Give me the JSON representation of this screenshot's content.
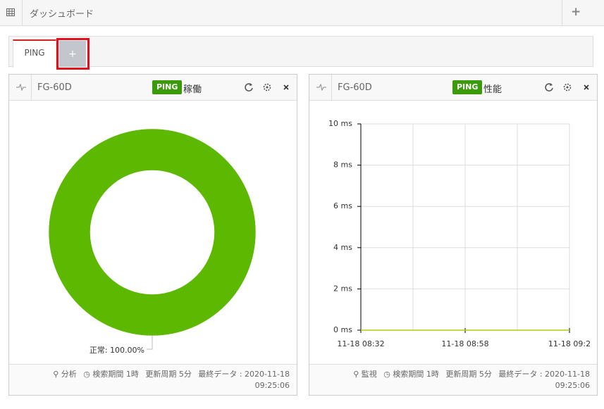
{
  "header": {
    "title": "ダッシュボード",
    "add": "+"
  },
  "tabs": [
    {
      "label": "PING"
    },
    {
      "label": "+"
    }
  ],
  "panels": [
    {
      "device": "FG-60D",
      "badge": "PING",
      "kind": "稼働",
      "footer": {
        "link": "分析",
        "period": "検索期間 1時",
        "interval": "更新周期 5分",
        "last": "最終データ : 2020-11-18",
        "last_time": "09:25:06"
      }
    },
    {
      "device": "FG-60D",
      "badge": "PING",
      "kind": "性能",
      "footer": {
        "link": "監視",
        "period": "検索期間 1時",
        "interval": "更新周期 5分",
        "last": "最終データ : 2020-11-18",
        "last_time": "09:25:06"
      }
    }
  ],
  "chart_data": [
    {
      "type": "pie",
      "categories": [
        "正常"
      ],
      "values": [
        100
      ],
      "value_labels": [
        "正常: 100.00%"
      ],
      "colors": [
        "#5cb800"
      ],
      "donut": true
    },
    {
      "type": "line",
      "categories": [
        "11-18 08:32",
        null,
        "11-18 08:58",
        null,
        "11-18 09:2"
      ],
      "values": [
        0,
        0,
        0,
        0,
        0
      ],
      "color": "#b3cc10",
      "ylim": [
        0,
        10
      ],
      "yticks": [
        {
          "value": 0,
          "label": "0 ms"
        },
        {
          "value": 2,
          "label": "2 ms"
        },
        {
          "value": 4,
          "label": "4 ms"
        },
        {
          "value": 6,
          "label": "6 ms"
        },
        {
          "value": 8,
          "label": "8 ms"
        },
        {
          "value": 10,
          "label": "10 ms"
        }
      ],
      "grid": true
    }
  ]
}
